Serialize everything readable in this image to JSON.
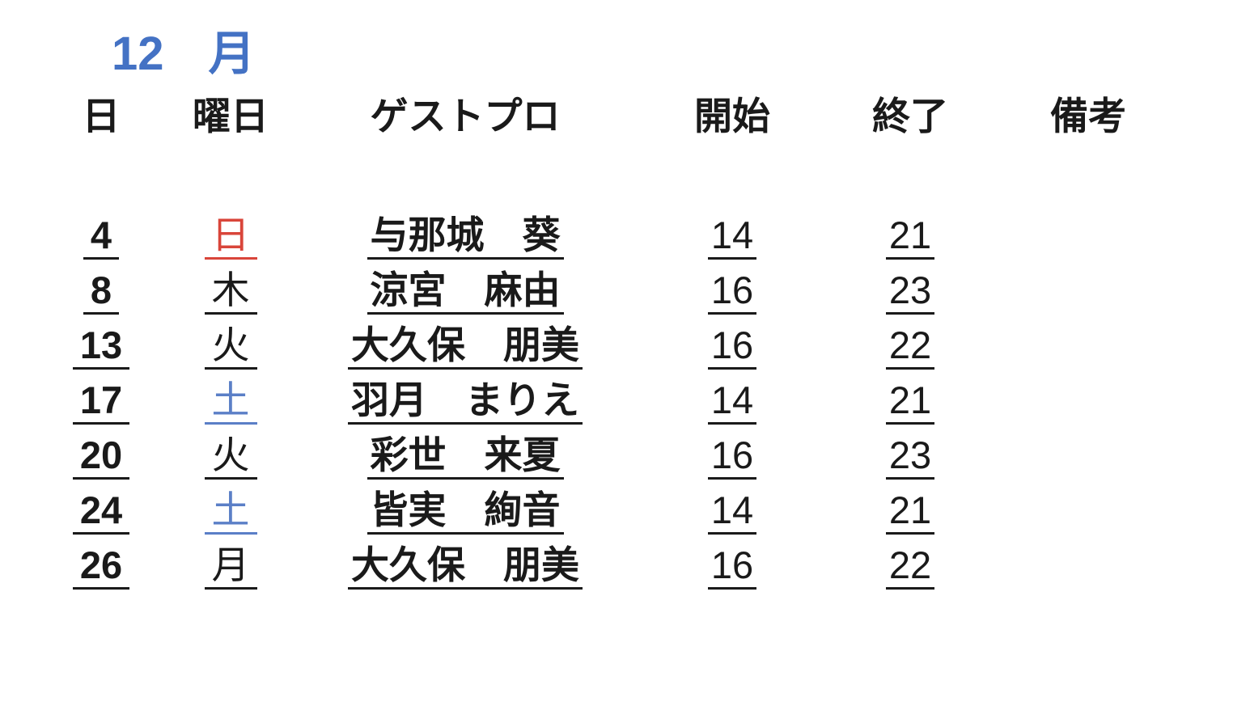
{
  "page": {
    "background": "#ffffff"
  },
  "title": {
    "month_number": "12",
    "month_label": "月",
    "color": "#4472c4"
  },
  "table": {
    "headers": [
      {
        "key": "day",
        "label": "日"
      },
      {
        "key": "weekday",
        "label": "曜日"
      },
      {
        "key": "guest",
        "label": "ゲストプロ"
      },
      {
        "key": "start",
        "label": "開始"
      },
      {
        "key": "end",
        "label": "終了"
      },
      {
        "key": "notes",
        "label": "備考"
      }
    ],
    "colors": {
      "sunday_red": "#d9453a",
      "saturday_blue": "#5b7fc7",
      "weekday_black": "#1a1a1a"
    },
    "rows": [
      {
        "day": "4",
        "weekday": "日",
        "weekday_color": "#d9453a",
        "guest": "与那城　葵",
        "start": "14",
        "end": "21",
        "notes": ""
      },
      {
        "day": "8",
        "weekday": "木",
        "weekday_color": "#1a1a1a",
        "guest": "涼宮　麻由",
        "start": "16",
        "end": "23",
        "notes": ""
      },
      {
        "day": "13",
        "weekday": "火",
        "weekday_color": "#1a1a1a",
        "guest": "大久保　朋美",
        "start": "16",
        "end": "22",
        "notes": ""
      },
      {
        "day": "17",
        "weekday": "土",
        "weekday_color": "#5b7fc7",
        "guest": "羽月　まりえ",
        "start": "14",
        "end": "21",
        "notes": ""
      },
      {
        "day": "20",
        "weekday": "火",
        "weekday_color": "#1a1a1a",
        "guest": "彩世　来夏",
        "start": "16",
        "end": "23",
        "notes": ""
      },
      {
        "day": "24",
        "weekday": "土",
        "weekday_color": "#5b7fc7",
        "guest": "皆実　絢音",
        "start": "14",
        "end": "21",
        "notes": ""
      },
      {
        "day": "26",
        "weekday": "月",
        "weekday_color": "#1a1a1a",
        "guest": "大久保　朋美",
        "start": "16",
        "end": "22",
        "notes": ""
      }
    ]
  }
}
